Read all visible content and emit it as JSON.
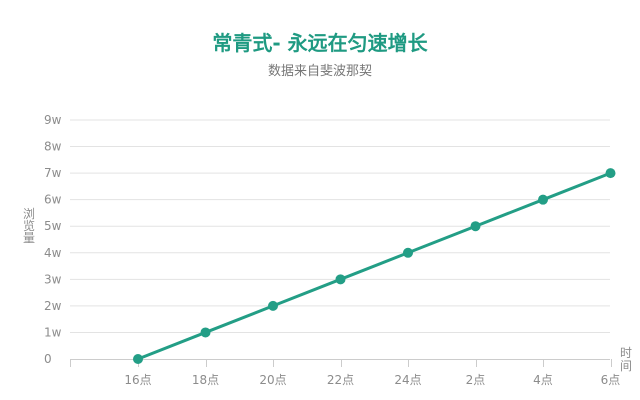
{
  "chart_data": {
    "type": "line",
    "title": "常青式- 永远在匀速增长",
    "subtitle": "数据来自斐波那契",
    "xlabel": "时间",
    "ylabel": "浏览量",
    "categories": [
      "16点",
      "18点",
      "20点",
      "22点",
      "24点",
      "2点",
      "4点",
      "6点"
    ],
    "series": [
      {
        "values": [
          0,
          1,
          2,
          3,
          4,
          5,
          6,
          7
        ]
      }
    ],
    "ylim": [
      0,
      9
    ],
    "ytick_values": [
      0,
      1,
      2,
      3,
      4,
      5,
      6,
      7,
      8,
      9
    ],
    "ytick_labels": [
      "0",
      "1w",
      "2w",
      "3w",
      "4w",
      "5w",
      "6w",
      "7w",
      "8w",
      "9w"
    ],
    "grid": true,
    "legend": "none"
  },
  "colors": {
    "title": "#1f9a82",
    "series": "#239e86",
    "subtitle": "#777777",
    "axis_text": "#8c8c8c",
    "grid": "#e3e3e3",
    "axis": "#cccccc"
  }
}
